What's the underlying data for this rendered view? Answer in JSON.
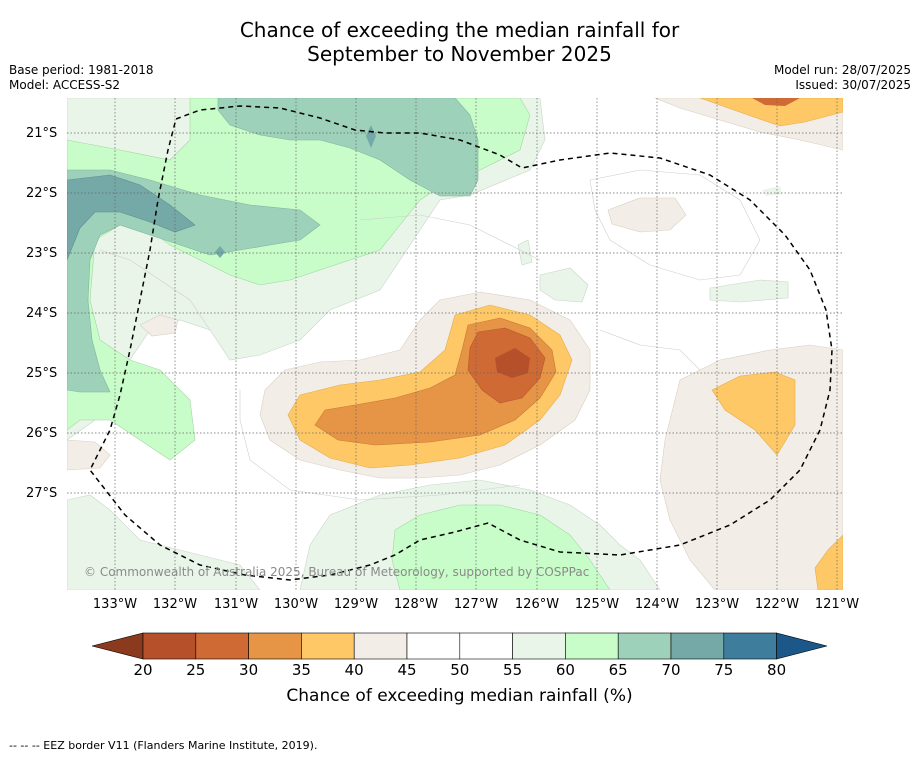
{
  "title_line1": "Chance of exceeding the median rainfall for",
  "title_line2": "September to November 2025",
  "base_period": "Base period: 1981-2018",
  "model": "Model: ACCESS-S2",
  "model_run": "Model run: 28/07/2025",
  "issued": "Issued: 30/07/2025",
  "copyright": "© Commonwealth of Australia 2025, Bureau of Meteorology, supported by COSPPac",
  "footer": "--  --  -- EEZ border V11 (Flanders Marine Institute, 2019).",
  "lat_labels": [
    "21°S",
    "22°S",
    "23°S",
    "24°S",
    "25°S",
    "26°S",
    "27°S"
  ],
  "lon_labels": [
    "133°W",
    "132°W",
    "131°W",
    "130°W",
    "129°W",
    "128°W",
    "127°W",
    "126°W",
    "125°W",
    "124°W",
    "123°W",
    "122°W",
    "121°W"
  ],
  "colorbar": {
    "title": "Chance of exceeding median rainfall (%)",
    "ticks": [
      "20",
      "25",
      "30",
      "35",
      "40",
      "45",
      "50",
      "55",
      "60",
      "65",
      "70",
      "75",
      "80"
    ],
    "bins": [
      {
        "label": "<20",
        "color": "#8c3a1e"
      },
      {
        "label": "20-25",
        "color": "#b5502a"
      },
      {
        "label": "25-30",
        "color": "#d06a35"
      },
      {
        "label": "30-35",
        "color": "#e69446"
      },
      {
        "label": "35-40",
        "color": "#fec866"
      },
      {
        "label": "40-45",
        "color": "#f2ede6"
      },
      {
        "label": "45-50",
        "color": "#ffffff"
      },
      {
        "label": "50-55",
        "color": "#ffffff"
      },
      {
        "label": "55-60",
        "color": "#e9f5e9"
      },
      {
        "label": "60-65",
        "color": "#c8fcc8"
      },
      {
        "label": "65-70",
        "color": "#9ed1b9"
      },
      {
        "label": "70-75",
        "color": "#74a9a8"
      },
      {
        "label": "75-80",
        "color": "#3f7d9c"
      },
      {
        "label": ">80",
        "color": "#1b5788"
      }
    ]
  }
}
